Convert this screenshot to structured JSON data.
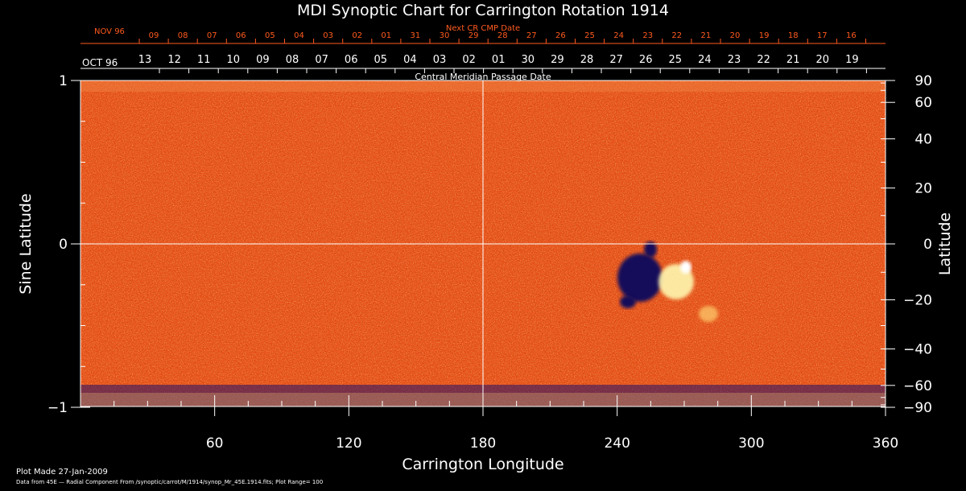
{
  "chart_data": {
    "type": "heatmap",
    "title": "MDI Synoptic Chart for Carrington Rotation 1914",
    "xlabel": "Carrington Longitude",
    "ylabel_left": "Sine Latitude",
    "ylabel_right": "Latitude",
    "xlim": [
      0,
      360
    ],
    "ylim": [
      -1,
      1
    ],
    "x_ticks": [
      60,
      120,
      180,
      240,
      300,
      360
    ],
    "y_ticks_left": [
      {
        "value": 1,
        "label": "1"
      },
      {
        "value": 0,
        "label": "0"
      },
      {
        "value": -1,
        "label": "−1"
      }
    ],
    "y_ticks_right": [
      90,
      60,
      40,
      20,
      0,
      -20,
      -40,
      -60,
      -90
    ],
    "top_axis_title": "Next CR CMP Date",
    "top_axis_start": "NOV 96",
    "top_axis_labels": [
      "09",
      "08",
      "07",
      "06",
      "05",
      "04",
      "03",
      "02",
      "01",
      "31",
      "30",
      "29",
      "28",
      "27",
      "26",
      "25",
      "24",
      "23",
      "22",
      "21",
      "20",
      "19",
      "18",
      "17",
      "16"
    ],
    "mid_axis_start": "OCT 96",
    "mid_axis_labels": [
      "13",
      "12",
      "11",
      "10",
      "09",
      "08",
      "07",
      "06",
      "05",
      "04",
      "03",
      "02",
      "01",
      "30",
      "29",
      "28",
      "27",
      "26",
      "25",
      "24",
      "23",
      "22",
      "21",
      "20",
      "19"
    ],
    "mid_axis_title": "Central Meridian Passage Date",
    "plot_made": "Plot Made 27-Jan-2009",
    "footer": "Data from 45E — Radial Component From /synoptic/carrot/M/1914/synop_Mr_45E.1914.fits; Plot Range=  100",
    "grid_lines": {
      "x": 180,
      "y": 0
    },
    "colors": {
      "background": "#000000",
      "map_base": "#e8501a",
      "negative": "#1a1a7a",
      "positive": "#fff4a0",
      "top_axis": "#ff5a1e"
    }
  }
}
